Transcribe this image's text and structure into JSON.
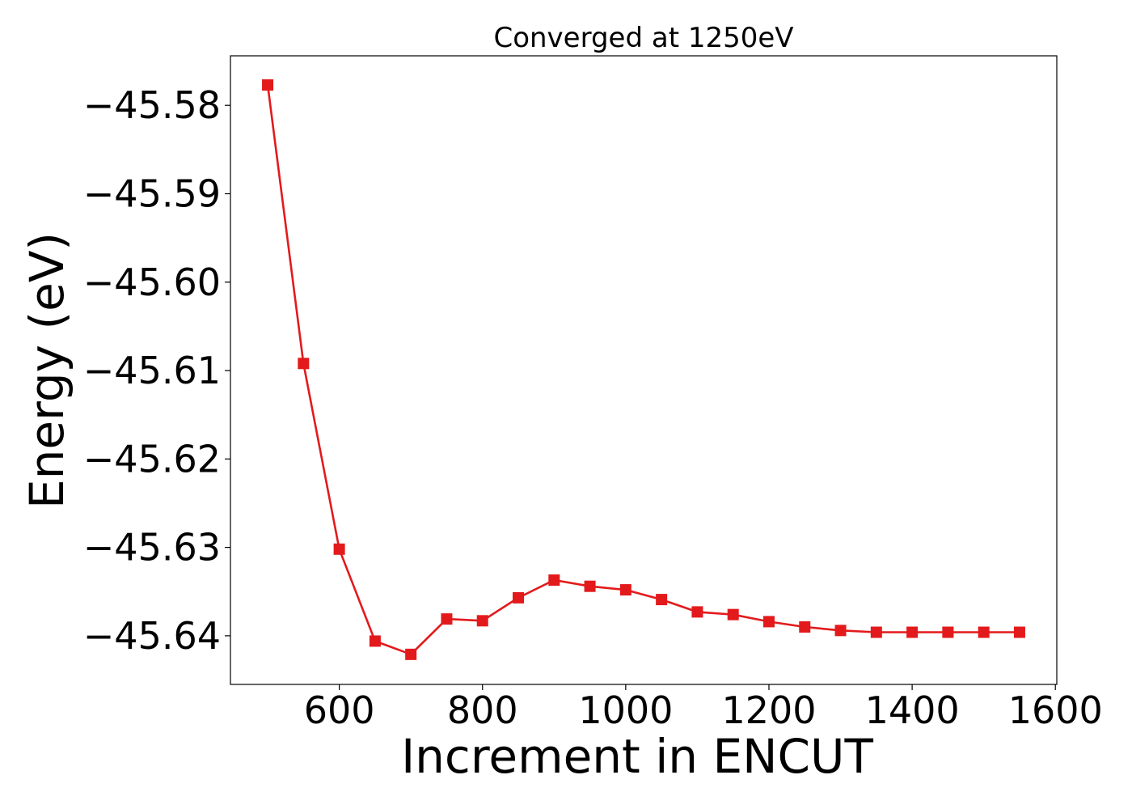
{
  "chart_data": {
    "type": "line",
    "title": "Converged at 1250eV",
    "xlabel": "Increment in ENCUT",
    "ylabel": "Energy (eV)",
    "xlim": [
      448,
      1602
    ],
    "ylim": [
      -45.6455,
      -45.5744
    ],
    "xticks": [
      600,
      800,
      1000,
      1200,
      1400,
      1600
    ],
    "xtick_labels": [
      "600",
      "800",
      "1000",
      "1200",
      "1400",
      "1600"
    ],
    "yticks": [
      -45.58,
      -45.59,
      -45.6,
      -45.61,
      -45.62,
      -45.63,
      -45.64
    ],
    "ytick_labels": [
      "−45.58",
      "−45.59",
      "−45.60",
      "−45.61",
      "−45.62",
      "−45.63",
      "−45.64"
    ],
    "grid": false,
    "series": [
      {
        "color": "#e31a1c",
        "marker": "square",
        "x": [
          500,
          550,
          600,
          650,
          700,
          750,
          800,
          850,
          900,
          950,
          1000,
          1050,
          1100,
          1150,
          1200,
          1250,
          1300,
          1350,
          1400,
          1450,
          1500,
          1550
        ],
        "y": [
          -45.5777,
          -45.6092,
          -45.6302,
          -45.6406,
          -45.6421,
          -45.6381,
          -45.6383,
          -45.6357,
          -45.6337,
          -45.6344,
          -45.6348,
          -45.6359,
          -45.6373,
          -45.6376,
          -45.6384,
          -45.639,
          -45.6394,
          -45.6396,
          -45.6396,
          -45.6396,
          -45.6396,
          -45.6396
        ]
      }
    ]
  }
}
